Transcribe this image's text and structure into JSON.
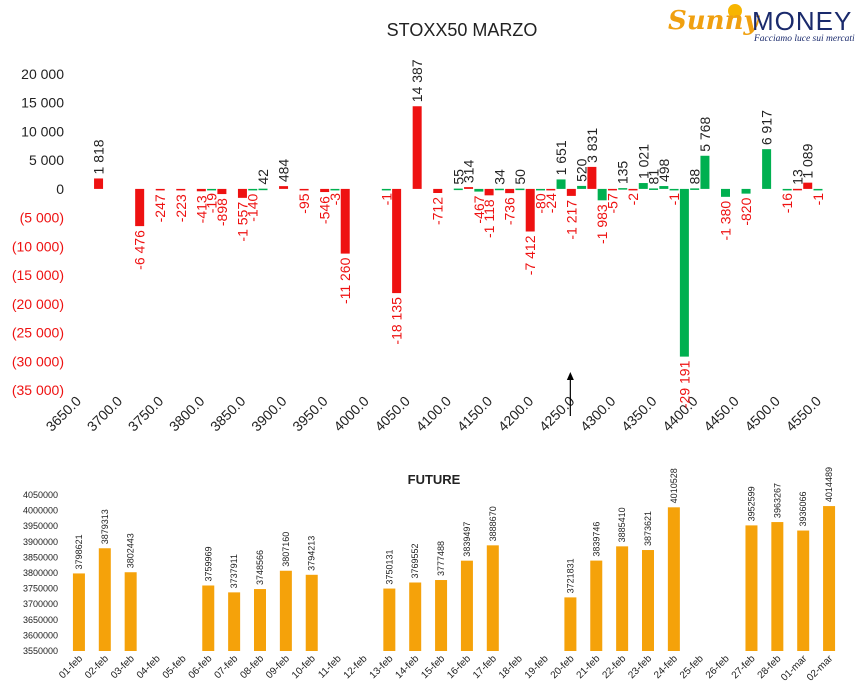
{
  "logo": {
    "name_a": "Sunny",
    "name_b": "MONEY",
    "tagline": "Facciamo luce sui mercati"
  },
  "chart_data": [
    {
      "type": "bar",
      "title": "STOXX50 MARZO",
      "ylim": [
        -35000,
        20000
      ],
      "yticks": [
        20000,
        15000,
        10000,
        5000,
        0,
        -5000,
        -10000,
        -15000,
        -20000,
        -25000,
        -30000,
        -35000
      ],
      "ytick_labels": [
        "20 000",
        "15 000",
        "10 000",
        "5 000",
        "0",
        "(5 000)",
        "(10 000)",
        "(15 000)",
        "(20 000)",
        "(25 000)",
        "(30 000)",
        "(35 000)"
      ],
      "xlim": [
        3650,
        4550
      ],
      "xticks": [
        3650,
        3700,
        3750,
        3800,
        3850,
        3900,
        3950,
        4000,
        4050,
        4100,
        4150,
        4200,
        4250,
        4300,
        4350,
        4400,
        4450,
        4500,
        4550
      ],
      "xtick_labels": [
        "3650.0",
        "3700.0",
        "3750.0",
        "3800.0",
        "3850.0",
        "3900.0",
        "3950.0",
        "4000.0",
        "4050.0",
        "4100.0",
        "4150.0",
        "4200.0",
        "4250.0",
        "4300.0",
        "4350.0",
        "4400.0",
        "4450.0",
        "4500.0",
        "4550.0"
      ],
      "colors": {
        "red": "#ee1111",
        "green": "#00b050"
      },
      "current_price_marker": 4250,
      "bars": [
        {
          "strike": 3675,
          "value": 1818,
          "label": "1 818",
          "color": "red"
        },
        {
          "strike": 3725,
          "value": -6476,
          "label": "-6 476",
          "color": "red"
        },
        {
          "strike": 3750,
          "value": -247,
          "label": "-247",
          "color": "red"
        },
        {
          "strike": 3775,
          "value": -223,
          "label": "-223",
          "color": "red"
        },
        {
          "strike": 3800,
          "value": -413,
          "label": "-413",
          "color": "red"
        },
        {
          "strike": 3812.5,
          "value": -19,
          "label": "-19",
          "color": "green"
        },
        {
          "strike": 3825,
          "value": -898,
          "label": "-898",
          "color": "red"
        },
        {
          "strike": 3850,
          "value": -1557,
          "label": "-1 557",
          "color": "red"
        },
        {
          "strike": 3862.5,
          "value": -140,
          "label": "-140",
          "color": "green"
        },
        {
          "strike": 3875,
          "value": 42,
          "label": "42",
          "color": "green"
        },
        {
          "strike": 3900,
          "value": 484,
          "label": "484",
          "color": "red"
        },
        {
          "strike": 3925,
          "value": -95,
          "label": "-95",
          "color": "red"
        },
        {
          "strike": 3950,
          "value": -546,
          "label": "-546",
          "color": "red"
        },
        {
          "strike": 3962.5,
          "value": -3,
          "label": "-3",
          "color": "green"
        },
        {
          "strike": 3975,
          "value": -11260,
          "label": "-11 260",
          "color": "red"
        },
        {
          "strike": 4025,
          "value": -1,
          "label": "-1",
          "color": "green"
        },
        {
          "strike": 4037.5,
          "value": -18135,
          "label": "-18 135",
          "color": "red"
        },
        {
          "strike": 4062.5,
          "value": 14387,
          "label": "14 387",
          "color": "red"
        },
        {
          "strike": 4087.5,
          "value": -712,
          "label": "-712",
          "color": "red"
        },
        {
          "strike": 4112.5,
          "value": 55,
          "label": "55",
          "color": "green"
        },
        {
          "strike": 4125,
          "value": 314,
          "label": "314",
          "color": "red"
        },
        {
          "strike": 4137.5,
          "value": -467,
          "label": "-467",
          "color": "green"
        },
        {
          "strike": 4150,
          "value": -1118,
          "label": "-1 118",
          "color": "red"
        },
        {
          "strike": 4162.5,
          "value": 34,
          "label": "34",
          "color": "green"
        },
        {
          "strike": 4175,
          "value": -736,
          "label": "-736",
          "color": "red"
        },
        {
          "strike": 4187.5,
          "value": 50,
          "label": "50",
          "color": "green"
        },
        {
          "strike": 4200,
          "value": -7412,
          "label": "-7 412",
          "color": "red"
        },
        {
          "strike": 4212.5,
          "value": -80,
          "label": "-80",
          "color": "green"
        },
        {
          "strike": 4225,
          "value": -24,
          "label": "-24",
          "color": "red"
        },
        {
          "strike": 4237.5,
          "value": 1651,
          "label": "1 651",
          "color": "green"
        },
        {
          "strike": 4250,
          "value": -1217,
          "label": "-1 217",
          "color": "red"
        },
        {
          "strike": 4262.5,
          "value": 520,
          "label": "520",
          "color": "green"
        },
        {
          "strike": 4275,
          "value": 3831,
          "label": "3 831",
          "color": "red"
        },
        {
          "strike": 4287.5,
          "value": -1983,
          "label": "-1 983",
          "color": "green"
        },
        {
          "strike": 4300,
          "value": -57,
          "label": "-57",
          "color": "red"
        },
        {
          "strike": 4312.5,
          "value": 135,
          "label": "135",
          "color": "green"
        },
        {
          "strike": 4325,
          "value": -2,
          "label": "-2",
          "color": "red"
        },
        {
          "strike": 4337.5,
          "value": 1021,
          "label": "1 021",
          "color": "green"
        },
        {
          "strike": 4350,
          "value": 81,
          "label": "81",
          "color": "green"
        },
        {
          "strike": 4362.5,
          "value": 498,
          "label": "498",
          "color": "green"
        },
        {
          "strike": 4375,
          "value": -1,
          "label": "-1",
          "color": "green"
        },
        {
          "strike": 4387.5,
          "value": -29191,
          "label": "-29 191",
          "color": "green"
        },
        {
          "strike": 4400,
          "value": 88,
          "label": "88",
          "color": "green"
        },
        {
          "strike": 4412.5,
          "value": 5768,
          "label": "5 768",
          "color": "green"
        },
        {
          "strike": 4437.5,
          "value": -1380,
          "label": "-1 380",
          "color": "green"
        },
        {
          "strike": 4462.5,
          "value": -820,
          "label": "-820",
          "color": "green"
        },
        {
          "strike": 4487.5,
          "value": 6917,
          "label": "6 917",
          "color": "green"
        },
        {
          "strike": 4512.5,
          "value": -16,
          "label": "-16",
          "color": "green"
        },
        {
          "strike": 4525,
          "value": 13,
          "label": "13",
          "color": "red"
        },
        {
          "strike": 4537.5,
          "value": 1089,
          "label": "1 089",
          "color": "red"
        },
        {
          "strike": 4550,
          "value": -1,
          "label": "-1",
          "color": "green"
        }
      ]
    },
    {
      "type": "bar",
      "title": "FUTURE",
      "ylim": [
        3550000,
        4050000
      ],
      "yticks": [
        3550000,
        3600000,
        3650000,
        3700000,
        3750000,
        3800000,
        3850000,
        3900000,
        3950000,
        4000000,
        4050000
      ],
      "ytick_labels": [
        "3550000",
        "3600000",
        "3650000",
        "3700000",
        "3750000",
        "3800000",
        "3850000",
        "3900000",
        "3950000",
        "4000000",
        "4050000"
      ],
      "bar_color": "#f5a20a",
      "categories": [
        "01-feb",
        "02-feb",
        "03-feb",
        "04-feb",
        "05-feb",
        "06-feb",
        "07-feb",
        "08-feb",
        "09-feb",
        "10-feb",
        "11-feb",
        "12-feb",
        "13-feb",
        "14-feb",
        "15-feb",
        "16-feb",
        "17-feb",
        "18-feb",
        "19-feb",
        "20-feb",
        "21-feb",
        "22-feb",
        "23-feb",
        "24-feb",
        "25-feb",
        "26-feb",
        "27-feb",
        "28-feb",
        "01-mar",
        "02-mar"
      ],
      "values": [
        3798621,
        3879313,
        3802443,
        null,
        null,
        3759969,
        3737911,
        3748566,
        3807160,
        3794213,
        null,
        null,
        3750131,
        3769552,
        3777488,
        3839497,
        3888670,
        null,
        null,
        3721831,
        3839746,
        3885410,
        3873621,
        4010528,
        null,
        null,
        3952599,
        3963267,
        3936066,
        4014489
      ]
    }
  ]
}
